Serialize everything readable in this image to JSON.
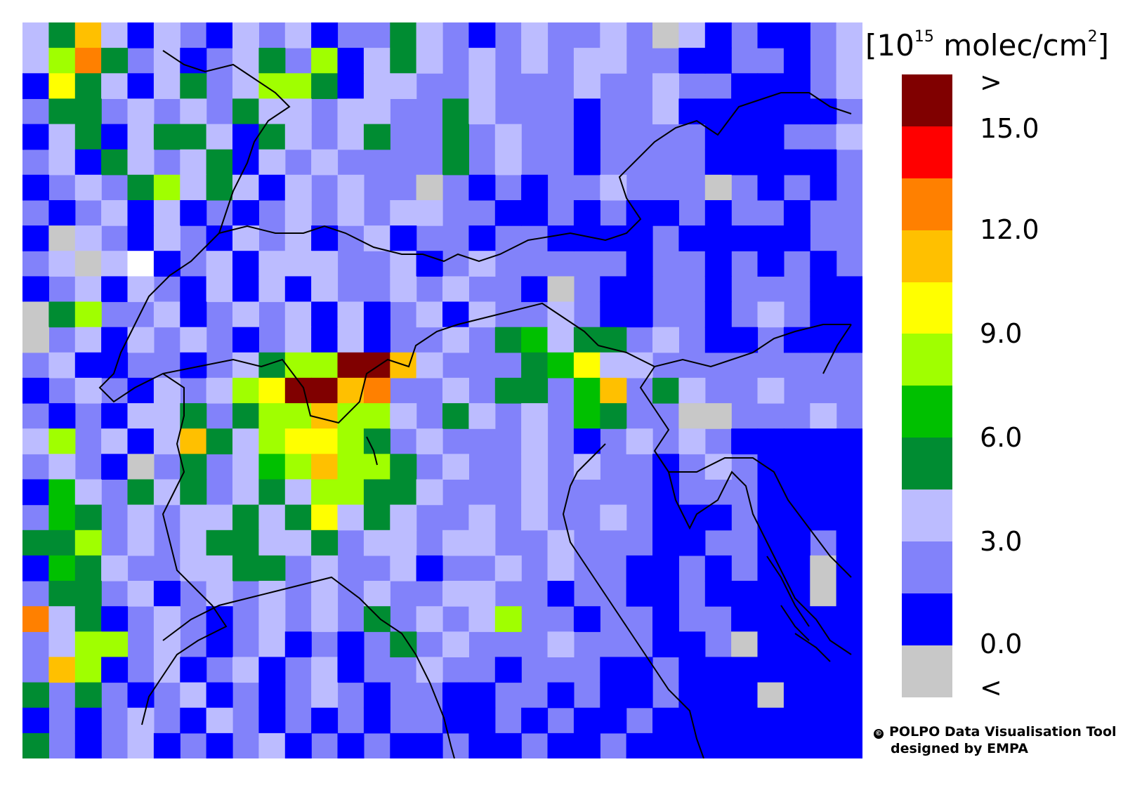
{
  "legend": {
    "units_base": "[10",
    "units_exp": "15",
    "units_tail": " molec/cm",
    "units_sq": "2",
    "units_close": "]",
    "label_above": ">",
    "label_below": "<",
    "tick_labels": [
      "15.0",
      "12.0",
      "9.0",
      "6.0",
      "3.0",
      "0.0"
    ],
    "bins": [
      {
        "name": "above-max",
        "color": "#800000"
      },
      {
        "name": "13.5-15",
        "color": "#ff0000"
      },
      {
        "name": "12-13.5",
        "color": "#ff8000"
      },
      {
        "name": "10.5-12",
        "color": "#ffc000"
      },
      {
        "name": "9-10.5",
        "color": "#ffff00"
      },
      {
        "name": "7.5-9",
        "color": "#a0ff00"
      },
      {
        "name": "6-7.5",
        "color": "#00c000"
      },
      {
        "name": "4.5-6",
        "color": "#008c32"
      },
      {
        "name": "3-4.5",
        "color": "#bcbcff"
      },
      {
        "name": "1.5-3",
        "color": "#8282fa"
      },
      {
        "name": "0-1.5",
        "color": "#0000ff"
      },
      {
        "name": "below-min",
        "color": "#c8c8c8"
      }
    ]
  },
  "credit": {
    "line1": "POLPO Data Visualisation Tool",
    "line2": "designed by EMPA"
  },
  "map": {
    "background_color": "#8282fa",
    "border_color": "#000000",
    "layer": "gridded tropospheric NO2 column, Northern Italy / Alps region"
  }
}
